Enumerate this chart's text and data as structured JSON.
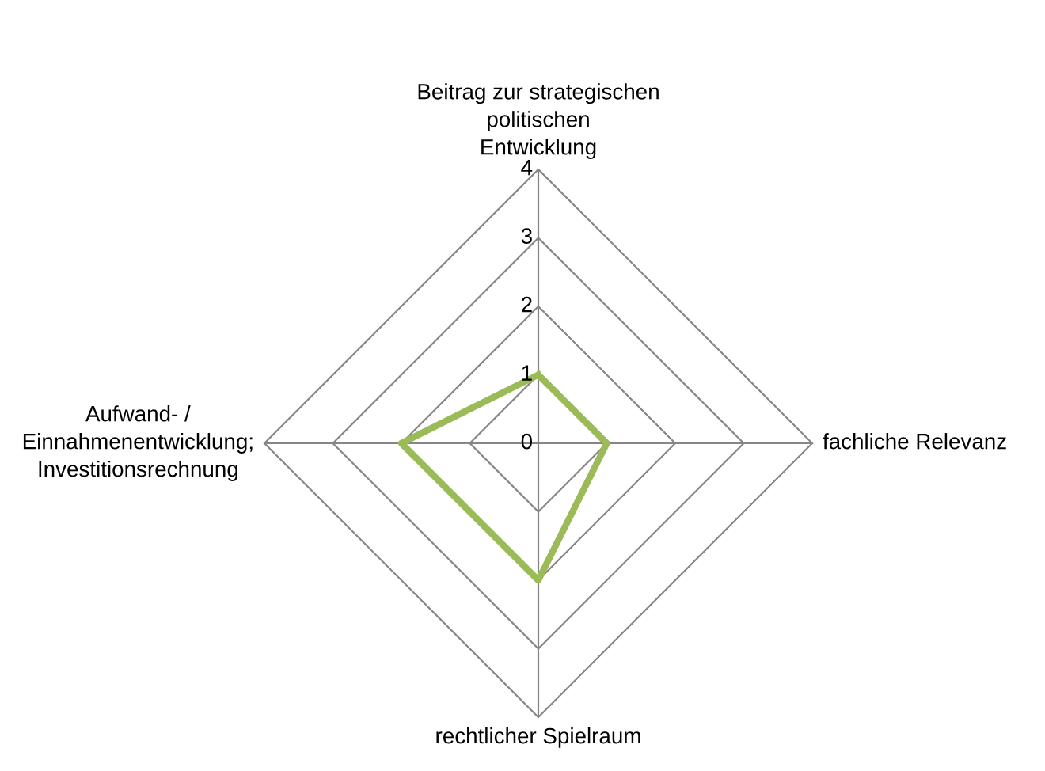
{
  "chart_data": {
    "type": "radar",
    "categories": [
      "Beitrag zur strategischen\npolitischen\nEntwicklung",
      "fachliche Relevanz",
      "rechtlicher Spielraum",
      "Aufwand- /\nEinnahmenentwicklung;\nInvestitionsrechnung"
    ],
    "series": [
      {
        "color": "#9bbb59",
        "values": [
          1,
          1,
          2,
          2
        ]
      }
    ],
    "ylim": [
      0,
      4
    ],
    "yticks": [
      0,
      1,
      2,
      3,
      4
    ],
    "grid": true
  }
}
